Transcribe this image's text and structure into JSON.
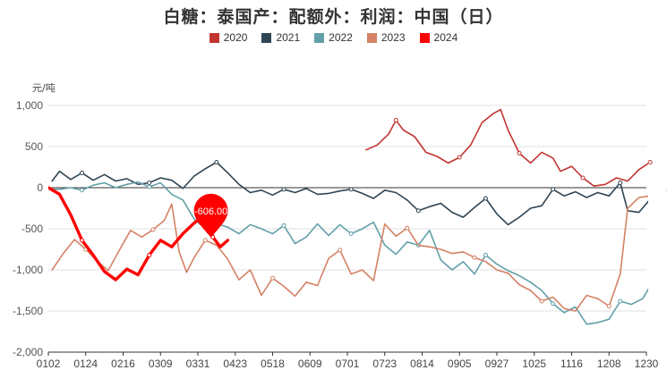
{
  "chart_data": {
    "type": "line",
    "title": "白糖：泰国产：配额外：利润：中国（日）",
    "ylabel": "元/吨",
    "ylim": [
      -2000,
      1000
    ],
    "yticks": [
      "1,000",
      "500",
      "0",
      "-500",
      "-1,000",
      "-1,500",
      "-2,000"
    ],
    "ytick_values": [
      1000,
      500,
      0,
      -500,
      -1000,
      -1500,
      -2000
    ],
    "categories": [
      "0102",
      "0124",
      "0216",
      "0309",
      "0331",
      "0423",
      "0518",
      "0609",
      "0701",
      "0723",
      "0814",
      "0905",
      "0927",
      "1025",
      "1116",
      "1208",
      "1230"
    ],
    "grid": true,
    "legend_position": "top-center",
    "series": [
      {
        "name": "2020",
        "color": "#c23531",
        "width": 1.6,
        "points": [
          [
            8.5,
            460
          ],
          [
            8.8,
            520
          ],
          [
            9.1,
            650
          ],
          [
            9.3,
            820
          ],
          [
            9.5,
            700
          ],
          [
            9.8,
            620
          ],
          [
            10.1,
            430
          ],
          [
            10.4,
            380
          ],
          [
            10.7,
            300
          ],
          [
            11.0,
            370
          ],
          [
            11.3,
            520
          ],
          [
            11.6,
            790
          ],
          [
            11.9,
            900
          ],
          [
            12.1,
            950
          ],
          [
            12.3,
            700
          ],
          [
            12.6,
            420
          ],
          [
            12.9,
            300
          ],
          [
            13.2,
            430
          ],
          [
            13.5,
            360
          ],
          [
            13.7,
            200
          ],
          [
            14.0,
            260
          ],
          [
            14.3,
            120
          ],
          [
            14.6,
            20
          ],
          [
            14.9,
            40
          ],
          [
            15.2,
            120
          ],
          [
            15.5,
            80
          ],
          [
            15.8,
            220
          ],
          [
            16.1,
            310
          ],
          [
            16.5,
            370
          ],
          [
            16.8,
            280
          ],
          [
            17.0,
            210
          ]
        ]
      },
      {
        "name": "2021",
        "color": "#2f4554",
        "width": 1.6,
        "points": [
          [
            0.1,
            80
          ],
          [
            0.3,
            200
          ],
          [
            0.6,
            100
          ],
          [
            0.9,
            180
          ],
          [
            1.2,
            90
          ],
          [
            1.5,
            160
          ],
          [
            1.8,
            80
          ],
          [
            2.1,
            110
          ],
          [
            2.4,
            40
          ],
          [
            2.7,
            60
          ],
          [
            3.0,
            120
          ],
          [
            3.3,
            90
          ],
          [
            3.6,
            -10
          ],
          [
            3.9,
            140
          ],
          [
            4.2,
            230
          ],
          [
            4.5,
            310
          ],
          [
            4.8,
            180
          ],
          [
            5.1,
            40
          ],
          [
            5.4,
            -60
          ],
          [
            5.7,
            -30
          ],
          [
            6.0,
            -90
          ],
          [
            6.3,
            -20
          ],
          [
            6.6,
            -60
          ],
          [
            6.9,
            -10
          ],
          [
            7.2,
            -80
          ],
          [
            7.5,
            -70
          ],
          [
            7.8,
            -40
          ],
          [
            8.1,
            -20
          ],
          [
            8.4,
            -70
          ],
          [
            8.7,
            -130
          ],
          [
            9.0,
            -30
          ],
          [
            9.3,
            -60
          ],
          [
            9.6,
            -150
          ],
          [
            9.9,
            -280
          ],
          [
            10.2,
            -230
          ],
          [
            10.5,
            -190
          ],
          [
            10.8,
            -300
          ],
          [
            11.1,
            -360
          ],
          [
            11.4,
            -240
          ],
          [
            11.7,
            -130
          ],
          [
            12.0,
            -320
          ],
          [
            12.3,
            -450
          ],
          [
            12.6,
            -360
          ],
          [
            12.9,
            -250
          ],
          [
            13.2,
            -220
          ],
          [
            13.5,
            -20
          ],
          [
            13.8,
            -100
          ],
          [
            14.1,
            -50
          ],
          [
            14.4,
            -120
          ],
          [
            14.7,
            -60
          ],
          [
            15.0,
            -100
          ],
          [
            15.3,
            60
          ],
          [
            15.5,
            -280
          ],
          [
            15.8,
            -300
          ],
          [
            16.1,
            -140
          ],
          [
            16.5,
            -160
          ],
          [
            16.8,
            -200
          ],
          [
            17.0,
            -180
          ]
        ]
      },
      {
        "name": "2022",
        "color": "#61a0a8",
        "width": 1.6,
        "points": [
          [
            0.1,
            -20
          ],
          [
            0.3,
            -20
          ],
          [
            0.6,
            0
          ],
          [
            0.9,
            -30
          ],
          [
            1.2,
            30
          ],
          [
            1.5,
            60
          ],
          [
            1.8,
            0
          ],
          [
            2.1,
            40
          ],
          [
            2.4,
            70
          ],
          [
            2.7,
            10
          ],
          [
            3.0,
            60
          ],
          [
            3.3,
            -80
          ],
          [
            3.6,
            -150
          ],
          [
            3.9,
            -380
          ],
          [
            4.2,
            -500
          ],
          [
            4.5,
            -440
          ],
          [
            4.8,
            -480
          ],
          [
            5.1,
            -560
          ],
          [
            5.4,
            -450
          ],
          [
            5.7,
            -500
          ],
          [
            6.0,
            -560
          ],
          [
            6.3,
            -460
          ],
          [
            6.6,
            -680
          ],
          [
            6.9,
            -600
          ],
          [
            7.2,
            -440
          ],
          [
            7.5,
            -580
          ],
          [
            7.8,
            -450
          ],
          [
            8.1,
            -560
          ],
          [
            8.4,
            -500
          ],
          [
            8.7,
            -420
          ],
          [
            9.0,
            -700
          ],
          [
            9.3,
            -810
          ],
          [
            9.6,
            -660
          ],
          [
            9.9,
            -700
          ],
          [
            10.2,
            -520
          ],
          [
            10.5,
            -880
          ],
          [
            10.8,
            -1000
          ],
          [
            11.1,
            -900
          ],
          [
            11.4,
            -1050
          ],
          [
            11.7,
            -820
          ],
          [
            12.0,
            -930
          ],
          [
            12.3,
            -1010
          ],
          [
            12.6,
            -1070
          ],
          [
            12.9,
            -1150
          ],
          [
            13.2,
            -1250
          ],
          [
            13.5,
            -1410
          ],
          [
            13.8,
            -1520
          ],
          [
            14.1,
            -1450
          ],
          [
            14.4,
            -1660
          ],
          [
            14.7,
            -1640
          ],
          [
            15.0,
            -1600
          ],
          [
            15.3,
            -1380
          ],
          [
            15.6,
            -1420
          ],
          [
            15.9,
            -1350
          ],
          [
            16.2,
            -1120
          ],
          [
            16.5,
            -1200
          ],
          [
            16.8,
            -1080
          ],
          [
            17.0,
            -1090
          ]
        ]
      },
      {
        "name": "2023",
        "color": "#d48265",
        "width": 1.6,
        "points": [
          [
            0.1,
            -1000
          ],
          [
            0.4,
            -800
          ],
          [
            0.7,
            -630
          ],
          [
            1.0,
            -750
          ],
          [
            1.3,
            -890
          ],
          [
            1.6,
            -1010
          ],
          [
            1.9,
            -760
          ],
          [
            2.2,
            -520
          ],
          [
            2.5,
            -600
          ],
          [
            2.8,
            -510
          ],
          [
            3.1,
            -400
          ],
          [
            3.3,
            -200
          ],
          [
            3.5,
            -780
          ],
          [
            3.7,
            -1030
          ],
          [
            3.9,
            -850
          ],
          [
            4.2,
            -640
          ],
          [
            4.5,
            -700
          ],
          [
            4.8,
            -870
          ],
          [
            5.1,
            -1120
          ],
          [
            5.4,
            -1000
          ],
          [
            5.7,
            -1310
          ],
          [
            6.0,
            -1100
          ],
          [
            6.3,
            -1200
          ],
          [
            6.6,
            -1320
          ],
          [
            6.9,
            -1150
          ],
          [
            7.2,
            -1190
          ],
          [
            7.5,
            -860
          ],
          [
            7.8,
            -760
          ],
          [
            8.1,
            -1050
          ],
          [
            8.4,
            -1000
          ],
          [
            8.7,
            -1130
          ],
          [
            9.0,
            -440
          ],
          [
            9.3,
            -590
          ],
          [
            9.6,
            -490
          ],
          [
            9.9,
            -700
          ],
          [
            10.2,
            -720
          ],
          [
            10.5,
            -750
          ],
          [
            10.8,
            -800
          ],
          [
            11.1,
            -780
          ],
          [
            11.4,
            -850
          ],
          [
            11.7,
            -900
          ],
          [
            12.0,
            -1000
          ],
          [
            12.3,
            -1040
          ],
          [
            12.6,
            -1180
          ],
          [
            12.9,
            -1250
          ],
          [
            13.2,
            -1380
          ],
          [
            13.5,
            -1330
          ],
          [
            13.8,
            -1470
          ],
          [
            14.1,
            -1500
          ],
          [
            14.4,
            -1310
          ],
          [
            14.7,
            -1350
          ],
          [
            15.0,
            -1440
          ],
          [
            15.3,
            -1050
          ],
          [
            15.5,
            -250
          ],
          [
            15.8,
            -120
          ],
          [
            16.1,
            -100
          ],
          [
            16.3,
            80
          ],
          [
            16.6,
            -30
          ],
          [
            16.9,
            -130
          ],
          [
            17.0,
            -300
          ]
        ]
      },
      {
        "name": "2024",
        "color": "#ff0000",
        "width": 3.4,
        "points": [
          [
            0.0,
            0
          ],
          [
            0.3,
            -80
          ],
          [
            0.6,
            -330
          ],
          [
            0.9,
            -640
          ],
          [
            1.2,
            -820
          ],
          [
            1.5,
            -1020
          ],
          [
            1.8,
            -1120
          ],
          [
            2.1,
            -990
          ],
          [
            2.4,
            -1060
          ],
          [
            2.7,
            -820
          ],
          [
            3.0,
            -640
          ],
          [
            3.3,
            -720
          ],
          [
            3.6,
            -560
          ],
          [
            3.9,
            -430
          ],
          [
            4.2,
            -330
          ],
          [
            4.4,
            -600
          ],
          [
            4.6,
            -720
          ],
          [
            4.8,
            -640
          ]
        ]
      }
    ],
    "tooltip": {
      "label": "-606.00",
      "series": "2024",
      "x": 4.35,
      "y": -606
    }
  }
}
